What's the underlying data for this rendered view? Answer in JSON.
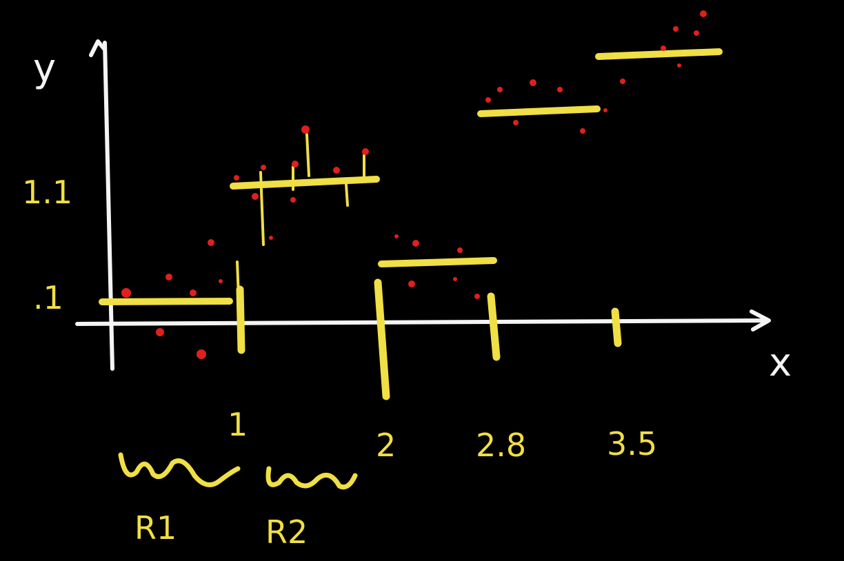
{
  "axes": {
    "y_label": "y",
    "x_label": "x"
  },
  "y_ticks": [
    ".1",
    "1.1"
  ],
  "x_ticks": [
    "1",
    "2",
    "2.8",
    "3.5"
  ],
  "regions": [
    "R1",
    "R2"
  ]
}
